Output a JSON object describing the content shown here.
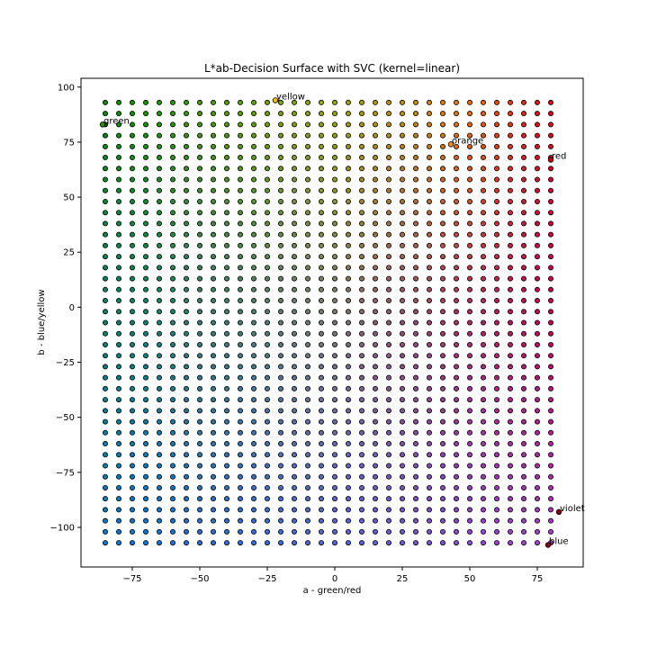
{
  "chart_data": {
    "type": "scatter",
    "title": "L*ab-Decision Surface with SVC (kernel=linear)",
    "xlabel": "a - green/red",
    "ylabel": "b - blue/yellow",
    "xlim": [
      -94,
      92
    ],
    "ylim": [
      -118,
      104
    ],
    "xticks": [
      -75,
      -50,
      -25,
      0,
      25,
      50,
      75
    ],
    "yticks": [
      -100,
      -75,
      -50,
      -25,
      0,
      25,
      50,
      75,
      100
    ],
    "xtick_labels": [
      "−75",
      "−50",
      "−25",
      "0",
      "25",
      "50",
      "75"
    ],
    "ytick_labels": [
      "−100",
      "−75",
      "−50",
      "−25",
      "0",
      "25",
      "50",
      "75",
      "100"
    ],
    "grid": false,
    "legend": "none",
    "decision_grid": {
      "x_start": -85,
      "x_step": 5,
      "x_count": 34,
      "y_start": -107,
      "y_step": 5,
      "y_count": 41,
      "marker": "circle",
      "edgecolor": "#000000",
      "color_model": "linear SVC decision surface: green (a<0,b>0), red/orange (a>0,b>0), blue (a<0,b<0), violet (a>0,b<0)"
    },
    "labeled_points": [
      {
        "label": "yellow",
        "x": -22,
        "y": 94,
        "color": "#f2c200"
      },
      {
        "label": "green",
        "x": -86,
        "y": 83,
        "color": "#2e8b00"
      },
      {
        "label": "orange",
        "x": 43,
        "y": 74,
        "color": "#ff8c1a"
      },
      {
        "label": "red",
        "x": 80,
        "y": 67,
        "color": "#cc0000"
      },
      {
        "label": "violet",
        "x": 83,
        "y": -93,
        "color": "#8b0000"
      },
      {
        "label": "blue",
        "x": 79,
        "y": -108,
        "color": "#8b0000"
      }
    ]
  }
}
